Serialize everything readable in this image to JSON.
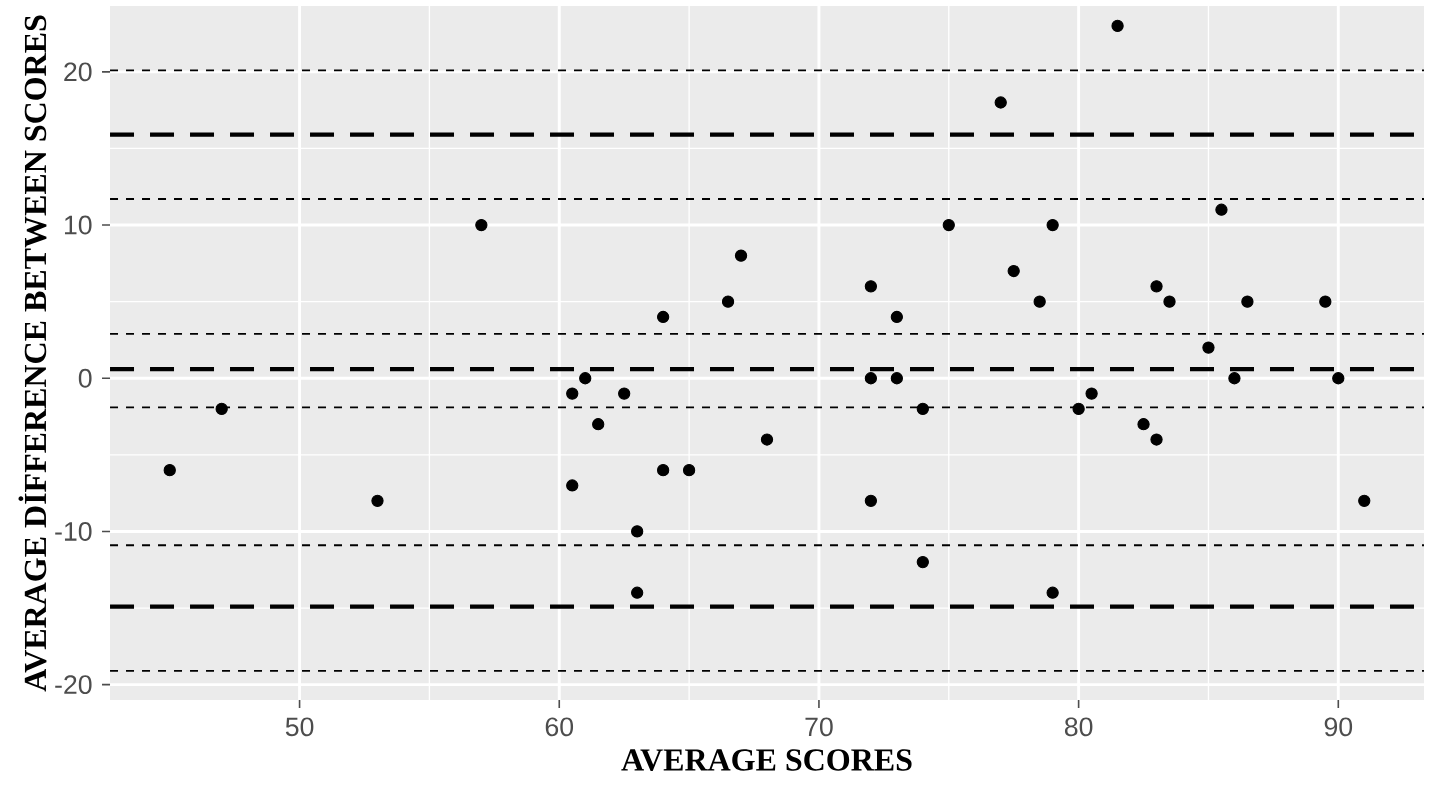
{
  "chart_data": {
    "type": "scatter",
    "xlabel": "AVERAGE SCORES",
    "ylabel": "AVERAGE DİFFERENCE BETWEEN SCORES",
    "series": [
      {
        "color": "#000000",
        "x": [
          45,
          47,
          53,
          57,
          60.5,
          61,
          61.5,
          60.5,
          62.5,
          63,
          63,
          64,
          64,
          65,
          66.5,
          67,
          68,
          72,
          72,
          72,
          73,
          73,
          74,
          74,
          75,
          77,
          77.5,
          78.5,
          79,
          79,
          80,
          80.5,
          81.5,
          82.5,
          83,
          83,
          83.5,
          85,
          85.5,
          86,
          86.5,
          89.5,
          90,
          91
        ],
        "values": [
          -6,
          -2,
          -8,
          10,
          -1,
          0,
          -3,
          -7,
          -1,
          -10,
          -14,
          4,
          -6,
          -6,
          5,
          8,
          -4,
          6,
          0,
          -8,
          4,
          0,
          -2,
          -12,
          10,
          18,
          7,
          5,
          10,
          -14,
          -2,
          -1,
          23,
          -3,
          6,
          -4,
          5,
          2,
          11,
          0,
          5,
          5,
          0,
          -8
        ]
      }
    ],
    "xlim": [
      42.7,
      93.3
    ],
    "ylim": [
      -21,
      24.3
    ],
    "xticks": [
      50,
      60,
      70,
      80,
      90
    ],
    "yticks": [
      -20,
      -10,
      0,
      10,
      20
    ],
    "grid": true,
    "ref_lines": [
      {
        "axis": "y",
        "value": 20.1,
        "color": "#000000",
        "line_style": "dotted"
      },
      {
        "axis": "y",
        "value": 15.9,
        "color": "#000000",
        "line_style": "dashed"
      },
      {
        "axis": "y",
        "value": 11.7,
        "color": "#000000",
        "line_style": "dotted"
      },
      {
        "axis": "y",
        "value": 2.9,
        "color": "#000000",
        "line_style": "dotted"
      },
      {
        "axis": "y",
        "value": 0.6,
        "color": "#000000",
        "line_style": "dashed"
      },
      {
        "axis": "y",
        "value": -1.9,
        "color": "#000000",
        "line_style": "dotted"
      },
      {
        "axis": "y",
        "value": -10.9,
        "color": "#000000",
        "line_style": "dotted"
      },
      {
        "axis": "y",
        "value": -14.9,
        "color": "#000000",
        "line_style": "dashed"
      },
      {
        "axis": "y",
        "value": -19.1,
        "color": "#000000",
        "line_style": "dotted"
      }
    ]
  }
}
